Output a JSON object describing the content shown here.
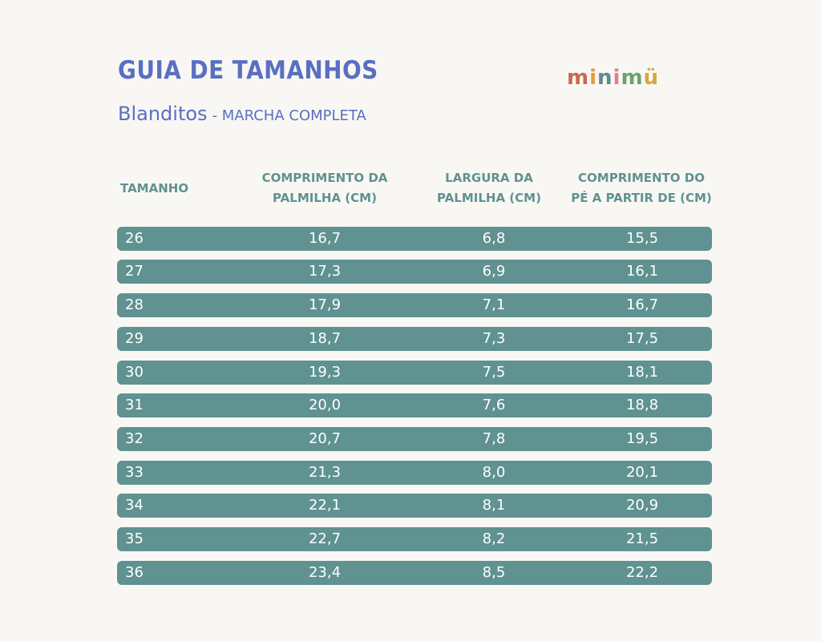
{
  "title": "GUIA DE TAMANHOS",
  "subtitle": {
    "name": "Blanditos",
    "variant": "- MARCHA COMPLETA"
  },
  "logo": {
    "letters": [
      "m",
      "i",
      "n",
      "i",
      "m",
      "ü"
    ]
  },
  "headers": {
    "size": "TAMANHO",
    "insole_length": "COMPRIMENTO DA\nPALMILHA (CM)",
    "insole_width": "LARGURA DA\nPALMILHA (CM)",
    "foot_length": "COMPRIMENTO DO\nPÉ A PARTIR DE (CM)"
  },
  "rows": [
    {
      "size": "26",
      "insole_length": "16,7",
      "insole_width": "6,8",
      "foot_length": "15,5"
    },
    {
      "size": "27",
      "insole_length": "17,3",
      "insole_width": "6,9",
      "foot_length": "16,1"
    },
    {
      "size": "28",
      "insole_length": "17,9",
      "insole_width": "7,1",
      "foot_length": "16,7"
    },
    {
      "size": "29",
      "insole_length": "18,7",
      "insole_width": "7,3",
      "foot_length": "17,5"
    },
    {
      "size": "30",
      "insole_length": "19,3",
      "insole_width": "7,5",
      "foot_length": "18,1"
    },
    {
      "size": "31",
      "insole_length": "20,0",
      "insole_width": "7,6",
      "foot_length": "18,8"
    },
    {
      "size": "32",
      "insole_length": "20,7",
      "insole_width": "7,8",
      "foot_length": "19,5"
    },
    {
      "size": "33",
      "insole_length": "21,3",
      "insole_width": "8,0",
      "foot_length": "20,1"
    },
    {
      "size": "34",
      "insole_length": "22,1",
      "insole_width": "8,1",
      "foot_length": "20,9"
    },
    {
      "size": "35",
      "insole_length": "22,7",
      "insole_width": "8,2",
      "foot_length": "21,5"
    },
    {
      "size": "36",
      "insole_length": "23,4",
      "insole_width": "8,5",
      "foot_length": "22,2"
    }
  ],
  "colors": {
    "title": "#5a6fc2",
    "row_background": "#5f9291",
    "header_text": "#5f9291",
    "page_background": "#f8f7f4"
  }
}
